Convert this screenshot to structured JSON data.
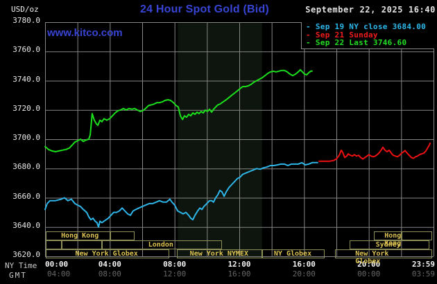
{
  "header": {
    "units_label": "USD/oz",
    "title": "24 Hour Spot Gold (Bid)",
    "watermark": "www.kitco.com",
    "timestamp": "September 22, 2025 16:40"
  },
  "legend": {
    "items": [
      {
        "label": "- Sep 19 NY close 3684.00",
        "color": "#2cb9ec"
      },
      {
        "label": "- Sep 21 Sunday",
        "color": "#f21c1c"
      },
      {
        "label": "- Sep 22 Last 3746.60",
        "color": "#22e022"
      }
    ]
  },
  "axes": {
    "y_ticks": [
      "3780.0",
      "3760.0",
      "3740.0",
      "3720.0",
      "3700.0",
      "3680.0",
      "3660.0",
      "3640.0",
      "3620.0"
    ],
    "x_rows": [
      {
        "name": "ny",
        "header": "NY Time",
        "color": "#f5f5f5",
        "bold": true,
        "ticks": [
          "00:00",
          "04:00",
          "08:00",
          "12:00",
          "16:00",
          "20:00",
          "23:59"
        ]
      },
      {
        "name": "gmt",
        "header": "GMT",
        "color": "#666666",
        "bold": false,
        "ticks": [
          "04:00",
          "08:00",
          "12:00",
          "16:00",
          "20:00",
          "00:00",
          "03:59"
        ]
      }
    ],
    "tick_hours": [
      0,
      4,
      8,
      12,
      16,
      20,
      23.983
    ]
  },
  "sessions": {
    "rows": [
      {
        "boxes": [
          {
            "start": 0.05,
            "end": 4.0,
            "label": "Hong Kong",
            "label_center": 2.15
          },
          {
            "start": 4.0,
            "end": 5.45
          },
          {
            "start": 20.3,
            "end": 22.0,
            "label": "Hong Kong",
            "label_center": 22.05
          },
          {
            "start": 22.0,
            "end": 23.85
          }
        ]
      },
      {
        "boxes": [
          {
            "start": 0.05,
            "end": 1.0
          },
          {
            "start": 1.0,
            "end": 3.45
          },
          {
            "start": 3.5,
            "end": 10.85,
            "label": "London",
            "label_center": 7.15
          },
          {
            "start": 18.8,
            "end": 23.65,
            "label": "Sydney",
            "label_center": 21.2
          }
        ]
      },
      {
        "boxes": [
          {
            "start": 0.05,
            "end": 7.6,
            "label": "New York Globex",
            "label_center": 3.8
          },
          {
            "start": 8.15,
            "end": 13.35,
            "label": "New York NYMEX",
            "label_center": 10.75
          },
          {
            "start": 13.4,
            "end": 17.2,
            "label": "NY Globex",
            "label_center": 15.3
          },
          {
            "start": 17.9,
            "end": 23.85,
            "label": "New York Globex",
            "label_center": 20.85
          }
        ]
      }
    ]
  },
  "colors": {
    "accent_blue": "#3845d4",
    "grid": "#868686",
    "shaded_band": "#0e150e",
    "khaki_border": "#8f8f5a",
    "khaki_text": "#dcc353",
    "cyan_series": "#2eb6e9",
    "red_series": "#ee1111",
    "green_series": "#1be01b"
  },
  "chart_data": {
    "type": "line",
    "title": "24 Hour Spot Gold (Bid)",
    "xlabel": "NY Time",
    "ylabel": "USD/oz",
    "x_range_hours": [
      0,
      24
    ],
    "ylim": [
      3620,
      3780
    ],
    "y_tick_interval": 20,
    "grid": true,
    "legend_position": "top-right",
    "shaded_region_hours": [
      8.2,
      13.4
    ],
    "series": [
      {
        "name": "Sep 19 NY close 3684.00",
        "color": "#2eb6e9",
        "points": [
          [
            0,
            3652
          ],
          [
            0.13,
            3656
          ],
          [
            0.3,
            3658
          ],
          [
            0.64,
            3658
          ],
          [
            0.99,
            3659
          ],
          [
            1.2,
            3660
          ],
          [
            1.41,
            3658
          ],
          [
            1.63,
            3659
          ],
          [
            1.84,
            3656
          ],
          [
            2.01,
            3655
          ],
          [
            2.19,
            3654
          ],
          [
            2.36,
            3652
          ],
          [
            2.57,
            3650
          ],
          [
            2.7,
            3647
          ],
          [
            2.83,
            3645
          ],
          [
            2.96,
            3646
          ],
          [
            3.09,
            3644
          ],
          [
            3.21,
            3643
          ],
          [
            3.3,
            3640
          ],
          [
            3.39,
            3644
          ],
          [
            3.51,
            3643
          ],
          [
            3.64,
            3644
          ],
          [
            3.77,
            3645
          ],
          [
            3.9,
            3646
          ],
          [
            4.07,
            3648
          ],
          [
            4.24,
            3650
          ],
          [
            4.41,
            3650
          ],
          [
            4.59,
            3651
          ],
          [
            4.76,
            3653
          ],
          [
            4.93,
            3651
          ],
          [
            5.1,
            3649
          ],
          [
            5.27,
            3648
          ],
          [
            5.44,
            3651
          ],
          [
            5.61,
            3652
          ],
          [
            5.79,
            3653
          ],
          [
            6,
            3654
          ],
          [
            6.21,
            3655
          ],
          [
            6.43,
            3656
          ],
          [
            6.64,
            3656
          ],
          [
            6.86,
            3657
          ],
          [
            7.07,
            3658
          ],
          [
            7.29,
            3657
          ],
          [
            7.5,
            3657
          ],
          [
            7.71,
            3659
          ],
          [
            7.84,
            3657
          ],
          [
            8.01,
            3655
          ],
          [
            8.19,
            3651
          ],
          [
            8.36,
            3650
          ],
          [
            8.53,
            3649
          ],
          [
            8.7,
            3650
          ],
          [
            8.87,
            3648
          ],
          [
            9,
            3646
          ],
          [
            9.13,
            3645
          ],
          [
            9.26,
            3648
          ],
          [
            9.43,
            3651
          ],
          [
            9.56,
            3653
          ],
          [
            9.69,
            3652
          ],
          [
            9.81,
            3654
          ],
          [
            9.99,
            3656
          ],
          [
            10.16,
            3658
          ],
          [
            10.29,
            3658
          ],
          [
            10.41,
            3657
          ],
          [
            10.54,
            3660
          ],
          [
            10.67,
            3662
          ],
          [
            10.8,
            3665
          ],
          [
            10.93,
            3664
          ],
          [
            11.06,
            3661
          ],
          [
            11.19,
            3664
          ],
          [
            11.36,
            3667
          ],
          [
            11.53,
            3669
          ],
          [
            11.7,
            3671
          ],
          [
            11.87,
            3673
          ],
          [
            12.04,
            3674
          ],
          [
            12.21,
            3676
          ],
          [
            12.43,
            3677
          ],
          [
            12.64,
            3678
          ],
          [
            12.86,
            3679
          ],
          [
            13.07,
            3680
          ],
          [
            13.29,
            3679.5
          ],
          [
            13.5,
            3680.5
          ],
          [
            13.71,
            3681
          ],
          [
            13.93,
            3682
          ],
          [
            14.14,
            3682
          ],
          [
            14.36,
            3682.5
          ],
          [
            14.57,
            3683
          ],
          [
            14.79,
            3683
          ],
          [
            15,
            3682
          ],
          [
            15.21,
            3683
          ],
          [
            15.43,
            3683
          ],
          [
            15.64,
            3683
          ],
          [
            15.86,
            3684
          ],
          [
            16.07,
            3682.5
          ],
          [
            16.29,
            3683
          ],
          [
            16.5,
            3684
          ],
          [
            16.84,
            3684
          ]
        ]
      },
      {
        "name": "Sep 21 Sunday",
        "color": "#ee1111",
        "points": [
          [
            16.93,
            3685
          ],
          [
            17.14,
            3685
          ],
          [
            17.36,
            3685
          ],
          [
            17.61,
            3685
          ],
          [
            17.83,
            3685.5
          ],
          [
            18,
            3686.5
          ],
          [
            18.17,
            3689
          ],
          [
            18.3,
            3692.5
          ],
          [
            18.39,
            3691
          ],
          [
            18.51,
            3687.5
          ],
          [
            18.64,
            3688.5
          ],
          [
            18.73,
            3690
          ],
          [
            18.86,
            3689
          ],
          [
            18.99,
            3688.5
          ],
          [
            19.11,
            3689.5
          ],
          [
            19.24,
            3688.5
          ],
          [
            19.37,
            3689
          ],
          [
            19.5,
            3687.5
          ],
          [
            19.63,
            3686.5
          ],
          [
            19.76,
            3687.5
          ],
          [
            19.89,
            3688.5
          ],
          [
            20.01,
            3689.5
          ],
          [
            20.14,
            3688.5
          ],
          [
            20.27,
            3688
          ],
          [
            20.4,
            3688.5
          ],
          [
            20.53,
            3689.5
          ],
          [
            20.66,
            3691
          ],
          [
            20.79,
            3693
          ],
          [
            20.87,
            3694.5
          ],
          [
            21,
            3692.5
          ],
          [
            21.13,
            3691.5
          ],
          [
            21.26,
            3692.5
          ],
          [
            21.39,
            3690.5
          ],
          [
            21.51,
            3689
          ],
          [
            21.64,
            3688.5
          ],
          [
            21.77,
            3688
          ],
          [
            21.9,
            3689
          ],
          [
            22.03,
            3690.5
          ],
          [
            22.16,
            3691.5
          ],
          [
            22.24,
            3692.3
          ],
          [
            22.37,
            3690.5
          ],
          [
            22.5,
            3689
          ],
          [
            22.63,
            3687.5
          ],
          [
            22.76,
            3687
          ],
          [
            22.89,
            3688
          ],
          [
            23.01,
            3688.5
          ],
          [
            23.14,
            3689.5
          ],
          [
            23.27,
            3690
          ],
          [
            23.4,
            3690.5
          ],
          [
            23.53,
            3692
          ],
          [
            23.66,
            3694.5
          ],
          [
            23.74,
            3696
          ],
          [
            23.79,
            3697.3
          ]
        ]
      },
      {
        "name": "Sep 22 Last 3746.60",
        "color": "#1be01b",
        "points": [
          [
            0,
            3695
          ],
          [
            0.21,
            3693
          ],
          [
            0.43,
            3692
          ],
          [
            0.64,
            3691.5
          ],
          [
            0.86,
            3692
          ],
          [
            1.07,
            3692.5
          ],
          [
            1.29,
            3693
          ],
          [
            1.5,
            3694
          ],
          [
            1.67,
            3696
          ],
          [
            1.84,
            3698
          ],
          [
            2.01,
            3699
          ],
          [
            2.19,
            3700
          ],
          [
            2.36,
            3698.5
          ],
          [
            2.53,
            3699.5
          ],
          [
            2.7,
            3700
          ],
          [
            2.79,
            3703
          ],
          [
            2.91,
            3717.5
          ],
          [
            3.04,
            3713
          ],
          [
            3.17,
            3710.5
          ],
          [
            3.26,
            3709.5
          ],
          [
            3.39,
            3713
          ],
          [
            3.51,
            3712
          ],
          [
            3.64,
            3714
          ],
          [
            3.81,
            3713
          ],
          [
            3.99,
            3714
          ],
          [
            4.16,
            3716
          ],
          [
            4.33,
            3718
          ],
          [
            4.5,
            3719.5
          ],
          [
            4.67,
            3720
          ],
          [
            4.84,
            3721
          ],
          [
            5.01,
            3720
          ],
          [
            5.19,
            3721
          ],
          [
            5.36,
            3720.5
          ],
          [
            5.53,
            3721
          ],
          [
            5.7,
            3720
          ],
          [
            5.87,
            3719
          ],
          [
            6.04,
            3719.5
          ],
          [
            6.21,
            3721
          ],
          [
            6.39,
            3723
          ],
          [
            6.56,
            3723.5
          ],
          [
            6.73,
            3724
          ],
          [
            6.9,
            3725
          ],
          [
            7.07,
            3725
          ],
          [
            7.24,
            3725.5
          ],
          [
            7.41,
            3726.5
          ],
          [
            7.59,
            3727
          ],
          [
            7.76,
            3726.5
          ],
          [
            7.93,
            3725
          ],
          [
            8.1,
            3723
          ],
          [
            8.23,
            3722
          ],
          [
            8.36,
            3716
          ],
          [
            8.49,
            3713.5
          ],
          [
            8.61,
            3716
          ],
          [
            8.74,
            3715
          ],
          [
            8.87,
            3717
          ],
          [
            9,
            3716
          ],
          [
            9.13,
            3718
          ],
          [
            9.26,
            3717
          ],
          [
            9.39,
            3718.5
          ],
          [
            9.51,
            3717.5
          ],
          [
            9.64,
            3719
          ],
          [
            9.77,
            3718
          ],
          [
            9.9,
            3720
          ],
          [
            10.03,
            3719
          ],
          [
            10.16,
            3720.5
          ],
          [
            10.29,
            3718.5
          ],
          [
            10.41,
            3720.5
          ],
          [
            10.54,
            3722
          ],
          [
            10.67,
            3723.5
          ],
          [
            10.8,
            3724
          ],
          [
            10.93,
            3725
          ],
          [
            11.06,
            3726
          ],
          [
            11.19,
            3727
          ],
          [
            11.36,
            3728.5
          ],
          [
            11.53,
            3730
          ],
          [
            11.7,
            3731.5
          ],
          [
            11.87,
            3733
          ],
          [
            12.04,
            3734.5
          ],
          [
            12.21,
            3736
          ],
          [
            12.39,
            3736
          ],
          [
            12.56,
            3736.5
          ],
          [
            12.73,
            3737.5
          ],
          [
            12.9,
            3739
          ],
          [
            13.07,
            3740
          ],
          [
            13.24,
            3741
          ],
          [
            13.41,
            3742
          ],
          [
            13.59,
            3743.5
          ],
          [
            13.76,
            3745
          ],
          [
            13.93,
            3746
          ],
          [
            14.1,
            3746.5
          ],
          [
            14.27,
            3746
          ],
          [
            14.44,
            3746.5
          ],
          [
            14.61,
            3747
          ],
          [
            14.79,
            3747
          ],
          [
            14.96,
            3746
          ],
          [
            15.13,
            3744.5
          ],
          [
            15.3,
            3743.5
          ],
          [
            15.47,
            3744.5
          ],
          [
            15.64,
            3746
          ],
          [
            15.77,
            3747.5
          ],
          [
            15.9,
            3746
          ],
          [
            16.03,
            3744.5
          ],
          [
            16.16,
            3744
          ],
          [
            16.29,
            3745.5
          ],
          [
            16.41,
            3746.5
          ],
          [
            16.5,
            3746.6
          ]
        ]
      }
    ]
  }
}
